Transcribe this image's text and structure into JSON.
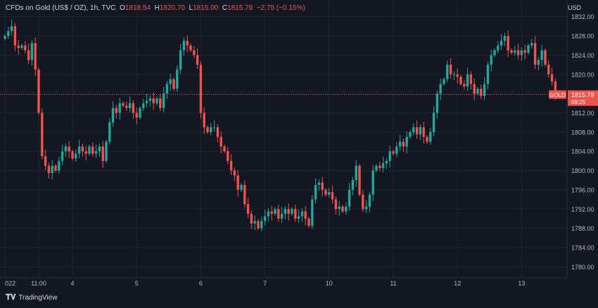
{
  "header": {
    "symbol": "CFDs on Gold (US$ / OZ), 1h, TVC",
    "o_key": "O",
    "o_val": "1818.54",
    "h_key": "H",
    "h_val": "1820.70",
    "l_key": "L",
    "l_val": "1815.00",
    "c_key": "C",
    "c_val": "1815.79",
    "change": "−2.75 (−0.15%)"
  },
  "currency": "USD",
  "brand": "TradingView",
  "price_tag": {
    "symbol": "GOLD",
    "price": "1815.79",
    "countdown": "09:25"
  },
  "colors": {
    "up": "#26a69a",
    "down": "#ef5350",
    "background": "#131722",
    "grid": "#1f2433",
    "axis_text": "#b2b5be"
  },
  "chart_data": {
    "type": "candlestick",
    "ylim": [
      1778,
      1834
    ],
    "yticks": [
      1780,
      1784,
      1788,
      1792,
      1796,
      1800,
      1804,
      1808,
      1812,
      1816,
      1820,
      1824,
      1828,
      1832
    ],
    "xticks": [
      {
        "label": "022",
        "bar": 0
      },
      {
        "label": "11:00",
        "bar": 10
      },
      {
        "label": "4",
        "bar": 20
      },
      {
        "label": "5",
        "bar": 39
      },
      {
        "label": "6",
        "bar": 58
      },
      {
        "label": "7",
        "bar": 77
      },
      {
        "label": "10",
        "bar": 96
      },
      {
        "label": "11",
        "bar": 115
      },
      {
        "label": "12",
        "bar": 134
      },
      {
        "label": "13",
        "bar": 153
      }
    ],
    "last_price": 1815.79,
    "close_series": [
      1828,
      1829,
      1830,
      1826,
      1825.5,
      1826,
      1825,
      1823,
      1826.5,
      1821,
      1812,
      1803,
      1801,
      1799.5,
      1801,
      1800,
      1802,
      1804,
      1805,
      1804,
      1802.5,
      1803.5,
      1805,
      1804,
      1803.5,
      1805,
      1803.5,
      1804,
      1805,
      1802,
      1806,
      1810,
      1813,
      1812,
      1814,
      1813.5,
      1813,
      1814,
      1812,
      1811,
      1813,
      1814,
      1814.5,
      1815,
      1814,
      1815,
      1813,
      1816,
      1818,
      1819,
      1817,
      1821,
      1825,
      1827,
      1826,
      1825,
      1824,
      1822,
      1812,
      1809,
      1808,
      1809,
      1809,
      1807,
      1805,
      1804,
      1802,
      1800,
      1799,
      1796,
      1797,
      1793,
      1791,
      1789,
      1789.5,
      1788,
      1789.5,
      1790.5,
      1791.5,
      1791,
      1792,
      1790,
      1791,
      1792,
      1791,
      1792,
      1790,
      1790.5,
      1791.5,
      1790,
      1788.5,
      1794,
      1797,
      1797.5,
      1796,
      1795,
      1795.5,
      1794,
      1792,
      1792.5,
      1791.5,
      1792.5,
      1796,
      1798,
      1801,
      1795,
      1792,
      1792.5,
      1795,
      1800,
      1801,
      1800.5,
      1801.5,
      1802,
      1804,
      1803.5,
      1805,
      1806,
      1805,
      1807,
      1808,
      1809,
      1807.5,
      1809,
      1807,
      1806,
      1808,
      1812,
      1816,
      1818,
      1819,
      1822,
      1820,
      1820,
      1819.5,
      1818,
      1817.5,
      1820,
      1818,
      1816,
      1817,
      1815.5,
      1818,
      1822,
      1824,
      1825,
      1826,
      1827,
      1828,
      1825,
      1824.5,
      1825,
      1824,
      1825,
      1824.5,
      1826,
      1826.5,
      1822,
      1823,
      1825,
      1822,
      1820,
      1818.54,
      1815.79
    ]
  }
}
